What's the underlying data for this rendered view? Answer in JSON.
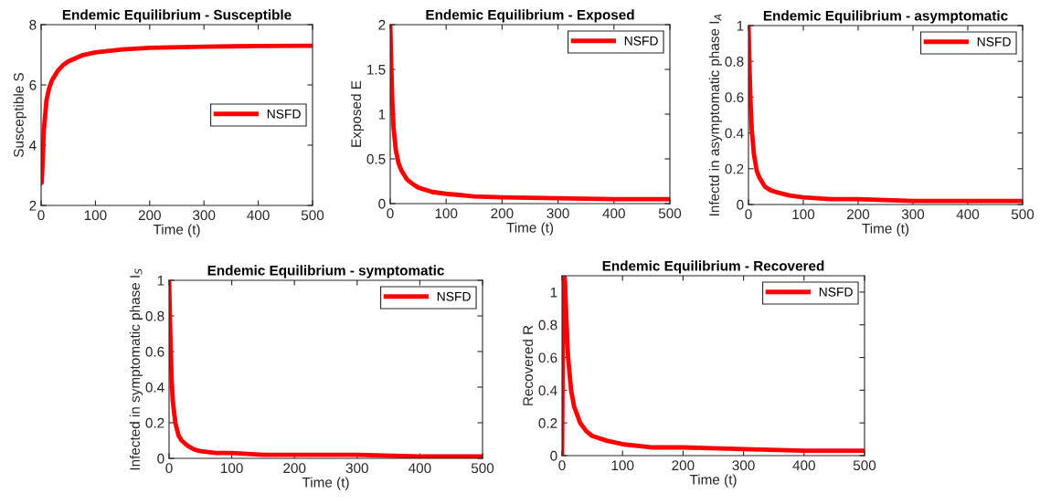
{
  "chart_data": [
    {
      "type": "line",
      "title": "Endemic Equilibrium - Susceptible",
      "xlabel": "Time (t)",
      "ylabel": "Susceptible S",
      "xlim": [
        0,
        500
      ],
      "xticks": [
        0,
        100,
        200,
        300,
        400,
        500
      ],
      "ylim": [
        2,
        8
      ],
      "yticks": [
        2,
        4,
        6,
        8
      ],
      "legend": "center right",
      "grid": false,
      "x": [
        0,
        1,
        3,
        5,
        10,
        15,
        20,
        30,
        40,
        50,
        75,
        100,
        150,
        200,
        300,
        400,
        500
      ],
      "series": [
        {
          "name": "NSFD",
          "color": "#ff0000",
          "values": [
            3.0,
            2.75,
            3.5,
            4.5,
            5.5,
            5.9,
            6.15,
            6.45,
            6.65,
            6.78,
            6.98,
            7.08,
            7.18,
            7.23,
            7.27,
            7.29,
            7.3
          ]
        }
      ]
    },
    {
      "type": "line",
      "title": "Endemic Equilibrium - Exposed",
      "xlabel": "Time (t)",
      "ylabel": "Exposed E",
      "xlim": [
        0,
        500
      ],
      "xticks": [
        0,
        100,
        200,
        300,
        400,
        500
      ],
      "ylim": [
        0,
        2
      ],
      "yticks": [
        0,
        0.5,
        1,
        1.5,
        2
      ],
      "legend": "top right",
      "grid": false,
      "x": [
        0,
        2,
        4,
        6,
        10,
        15,
        20,
        30,
        40,
        50,
        75,
        100,
        150,
        200,
        300,
        400,
        500
      ],
      "series": [
        {
          "name": "NSFD",
          "color": "#ff0000",
          "values": [
            2.0,
            1.5,
            1.1,
            0.85,
            0.6,
            0.45,
            0.37,
            0.27,
            0.22,
            0.18,
            0.13,
            0.11,
            0.08,
            0.07,
            0.06,
            0.05,
            0.05
          ]
        }
      ]
    },
    {
      "type": "line",
      "title": "Endemic Equilibrium - asymptomatic",
      "xlabel": "Time (t)",
      "ylabel": "Infectd in asymptomatic phase I$_{A}$",
      "xlim": [
        0,
        500
      ],
      "xticks": [
        0,
        100,
        200,
        300,
        400,
        500
      ],
      "ylim": [
        0,
        1
      ],
      "yticks": [
        0,
        0.2,
        0.4,
        0.6,
        0.8,
        1
      ],
      "legend": "top right",
      "grid": false,
      "x": [
        0,
        2,
        4,
        6,
        10,
        15,
        20,
        30,
        40,
        50,
        75,
        100,
        150,
        200,
        300,
        400,
        500
      ],
      "series": [
        {
          "name": "NSFD",
          "color": "#ff0000",
          "values": [
            1.0,
            0.75,
            0.55,
            0.42,
            0.28,
            0.19,
            0.15,
            0.1,
            0.08,
            0.07,
            0.05,
            0.04,
            0.03,
            0.03,
            0.02,
            0.02,
            0.02
          ]
        }
      ]
    },
    {
      "type": "line",
      "title": "Endemic Equilibrium - symptomatic",
      "xlabel": "Time (t)",
      "ylabel": "Infected in symptomatic phase I$_{S}$",
      "xlim": [
        0,
        500
      ],
      "xticks": [
        0,
        100,
        200,
        300,
        400,
        500
      ],
      "ylim": [
        0,
        1
      ],
      "yticks": [
        0,
        0.2,
        0.4,
        0.6,
        0.8,
        1
      ],
      "legend": "top right",
      "grid": false,
      "x": [
        0,
        2,
        4,
        6,
        10,
        15,
        20,
        30,
        40,
        50,
        75,
        100,
        150,
        200,
        300,
        400,
        500
      ],
      "series": [
        {
          "name": "NSFD",
          "color": "#ff0000",
          "values": [
            1.0,
            0.7,
            0.45,
            0.32,
            0.2,
            0.13,
            0.1,
            0.07,
            0.05,
            0.04,
            0.03,
            0.03,
            0.02,
            0.02,
            0.02,
            0.01,
            0.01
          ]
        }
      ]
    },
    {
      "type": "line",
      "title": "Endemic Equilibrium - Recovered",
      "xlabel": "Time (t)",
      "ylabel": "Recovered R",
      "xlim": [
        0,
        500
      ],
      "xticks": [
        0,
        100,
        200,
        300,
        400,
        500
      ],
      "ylim": [
        0,
        1.1
      ],
      "yticks": [
        0,
        0.2,
        0.4,
        0.6,
        0.8,
        1
      ],
      "legend": "top right",
      "grid": false,
      "x": [
        0,
        1,
        2,
        3,
        4,
        5,
        7,
        10,
        15,
        20,
        30,
        40,
        50,
        75,
        100,
        150,
        200,
        300,
        400,
        500
      ],
      "series": [
        {
          "name": "NSFD",
          "color": "#ff0000",
          "values": [
            0,
            0.5,
            0.9,
            1.08,
            1.1,
            1.05,
            0.85,
            0.6,
            0.4,
            0.3,
            0.2,
            0.15,
            0.12,
            0.09,
            0.07,
            0.05,
            0.05,
            0.04,
            0.03,
            0.03
          ]
        }
      ]
    }
  ]
}
